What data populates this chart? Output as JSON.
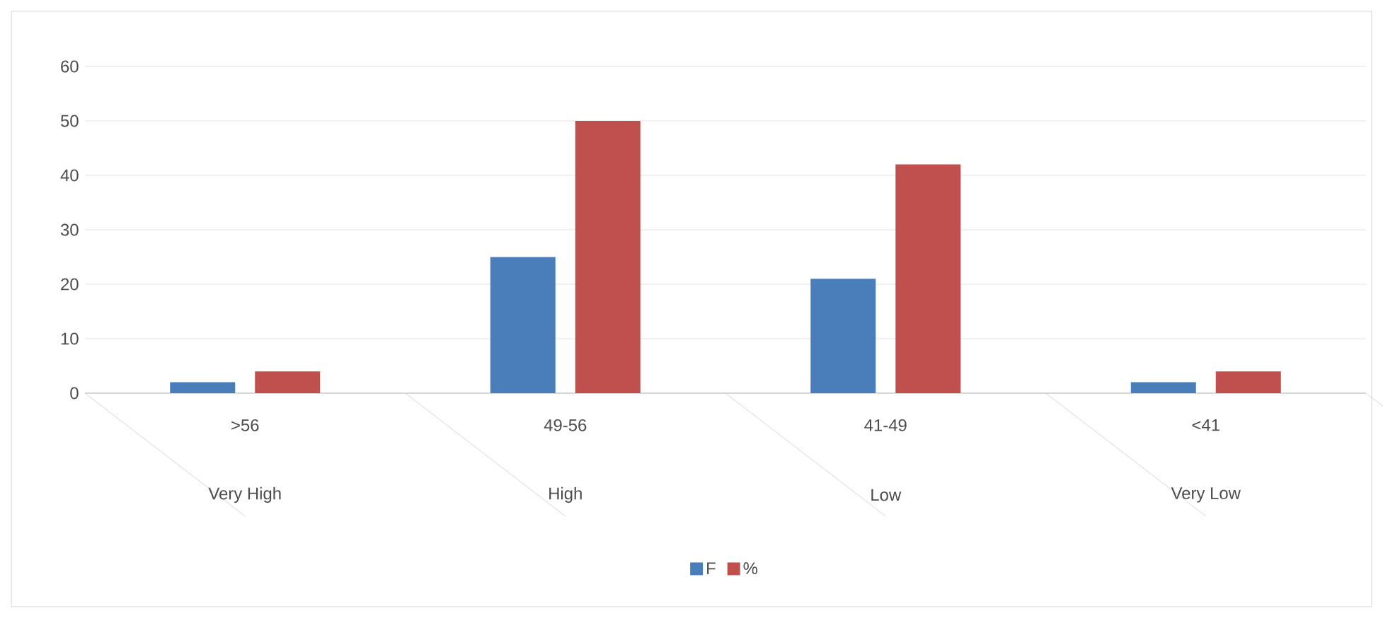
{
  "chart_data": {
    "type": "bar",
    "categories": [
      ">56",
      "49-56",
      "41-49",
      "<41"
    ],
    "series": [
      {
        "name": "F",
        "color": "#4a7ebb",
        "values": [
          2,
          25,
          21,
          2
        ]
      },
      {
        "name": "%",
        "color": "#c0504d",
        "values": [
          4,
          50,
          42,
          4
        ]
      }
    ],
    "annotations": [
      "Very High",
      "High",
      "Low",
      "Very Low"
    ],
    "ylim": [
      0,
      60
    ],
    "yticks": [
      0,
      10,
      20,
      30,
      40,
      50,
      60
    ],
    "grid": "y",
    "legend": "bottom"
  }
}
